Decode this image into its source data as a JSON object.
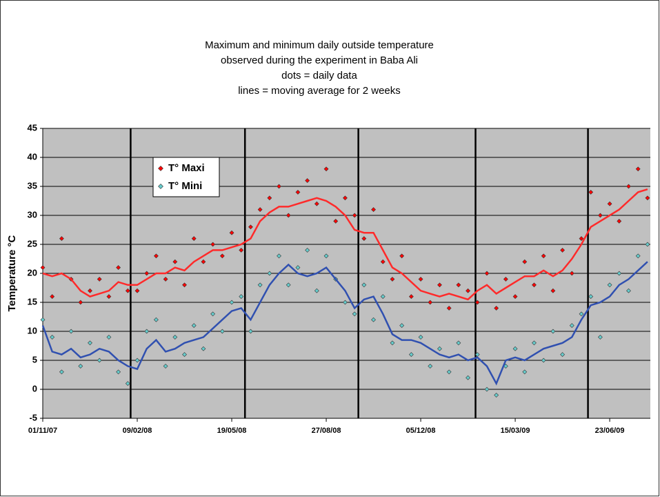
{
  "chart_data": {
    "type": "scatter",
    "title": [
      "Maximum and minimum daily outside temperature",
      "observed during the experiment in Baba Ali",
      "dots = daily data",
      "lines = moving average for 2 weeks"
    ],
    "y_label": "Temperature °C",
    "xlim": [
      0,
      643
    ],
    "xticks": [
      {
        "value": 0,
        "label": "01/11/07"
      },
      {
        "value": 100,
        "label": "09/02/08"
      },
      {
        "value": 200,
        "label": "19/05/08"
      },
      {
        "value": 300,
        "label": "27/08/08"
      },
      {
        "value": 400,
        "label": "05/12/08"
      },
      {
        "value": 500,
        "label": "15/03/09"
      },
      {
        "value": 600,
        "label": "23/06/09"
      }
    ],
    "ylim": [
      -5,
      45
    ],
    "yticks": [
      -5,
      0,
      5,
      10,
      15,
      20,
      25,
      30,
      35,
      40,
      45
    ],
    "grid": true,
    "markers": [
      93,
      214,
      334,
      458,
      577
    ],
    "x": [
      0,
      10,
      20,
      30,
      40,
      50,
      60,
      70,
      80,
      90,
      100,
      110,
      120,
      130,
      140,
      150,
      160,
      170,
      180,
      190,
      200,
      210,
      220,
      230,
      240,
      250,
      260,
      270,
      280,
      290,
      300,
      310,
      320,
      330,
      340,
      350,
      360,
      370,
      380,
      390,
      400,
      410,
      420,
      430,
      440,
      450,
      460,
      470,
      480,
      490,
      500,
      510,
      520,
      530,
      540,
      550,
      560,
      570,
      580,
      590,
      600,
      610,
      620,
      630,
      640
    ],
    "series": [
      {
        "name": "T° Maxi",
        "color": "#ff0000",
        "line_color": "#ff2a2a",
        "values": [
          21,
          16,
          26,
          19,
          15,
          17,
          19,
          16,
          21,
          17,
          17,
          20,
          23,
          19,
          22,
          18,
          26,
          22,
          25,
          23,
          27,
          24,
          28,
          31,
          33,
          35,
          30,
          34,
          36,
          32,
          38,
          29,
          33,
          30,
          26,
          31,
          22,
          19,
          23,
          16,
          19,
          15,
          18,
          14,
          18,
          17,
          15,
          20,
          14,
          19,
          16,
          22,
          18,
          23,
          17,
          24,
          20,
          26,
          34,
          30,
          32,
          29,
          35,
          38,
          33
        ],
        "average": [
          20,
          19.5,
          20,
          19,
          17,
          16,
          16.5,
          17,
          18.5,
          18,
          18,
          19,
          20,
          20,
          21,
          20.5,
          22,
          23,
          24,
          24,
          24.5,
          25,
          26,
          29,
          30.5,
          31.5,
          31.5,
          32,
          32.5,
          33,
          32.5,
          31.5,
          30,
          27.5,
          27,
          27,
          24,
          21,
          20,
          18.5,
          17,
          16.5,
          16,
          16.5,
          16,
          15.5,
          17,
          18,
          16.5,
          17.5,
          18.5,
          19.5,
          19.5,
          20.5,
          19.5,
          20.5,
          22.5,
          25,
          28,
          29,
          30,
          31,
          32.5,
          34,
          34.5
        ]
      },
      {
        "name": "T° Mini",
        "color": "#66cccc",
        "line_color": "#3050b0",
        "values": [
          12,
          9,
          3,
          10,
          4,
          8,
          5,
          9,
          3,
          1,
          5,
          10,
          12,
          4,
          9,
          6,
          11,
          7,
          13,
          10,
          15,
          16,
          10,
          18,
          20,
          23,
          18,
          21,
          24,
          17,
          23,
          19,
          15,
          13,
          18,
          12,
          16,
          8,
          11,
          6,
          9,
          4,
          7,
          3,
          8,
          2,
          6,
          0,
          -1,
          4,
          7,
          3,
          8,
          5,
          10,
          6,
          11,
          13,
          16,
          9,
          18,
          20,
          17,
          23,
          25
        ],
        "average": [
          11,
          6.5,
          6,
          7,
          5.5,
          6,
          7,
          6.5,
          5,
          4,
          3.5,
          7,
          8.5,
          6.5,
          7,
          8,
          8.5,
          9,
          10.5,
          12,
          13.5,
          14,
          12,
          15,
          18,
          20,
          21.5,
          20,
          19.5,
          20,
          21,
          19,
          17,
          14,
          15.5,
          16,
          13,
          9.5,
          8.5,
          8.5,
          8,
          7,
          6,
          5.5,
          6,
          5,
          5.5,
          4,
          1,
          5,
          5.5,
          5,
          6,
          7,
          7.5,
          8,
          9,
          12,
          14.5,
          15,
          16,
          18,
          19,
          20.5,
          22
        ]
      }
    ]
  }
}
